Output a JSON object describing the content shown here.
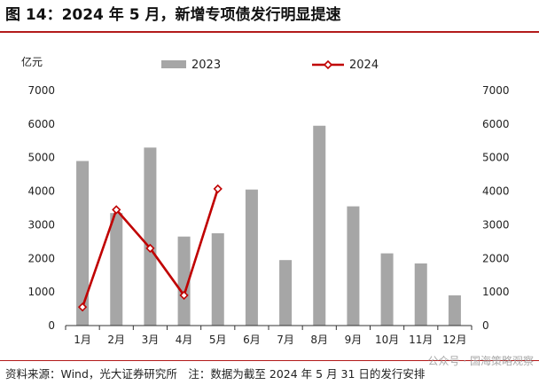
{
  "title": "图 14：2024 年 5 月，新增专项债发行明显提速",
  "source": "资料来源：Wind，光大证券研究所　注：数据为截至 2024 年 5 月 31 日的发行安排",
  "watermark": "公众号 · 国海策略观察",
  "chart_data": {
    "type": "bar",
    "unit_label": "亿元",
    "categories": [
      "1月",
      "2月",
      "3月",
      "4月",
      "5月",
      "6月",
      "7月",
      "8月",
      "9月",
      "10月",
      "11月",
      "12月"
    ],
    "series": [
      {
        "name": "2023",
        "type": "bar",
        "color": "#a6a6a6",
        "values": [
          4900,
          3350,
          5300,
          2650,
          2750,
          4050,
          1950,
          5950,
          3550,
          2150,
          1850,
          900
        ]
      },
      {
        "name": "2024",
        "type": "line",
        "color": "#c00000",
        "values": [
          550,
          3450,
          2300,
          900,
          4070,
          null,
          null,
          null,
          null,
          null,
          null,
          null
        ]
      }
    ],
    "ylim": [
      0,
      7000
    ],
    "yticks": [
      "0",
      "1000",
      "2000",
      "3000",
      "4000",
      "5000",
      "6000",
      "7000"
    ],
    "secondary_yticks": [
      "0",
      "1000",
      "2000",
      "3000",
      "4000",
      "5000",
      "6000",
      "7000"
    ],
    "legend_position": "top-center",
    "grid": false
  }
}
